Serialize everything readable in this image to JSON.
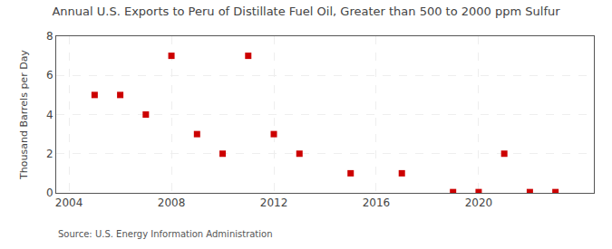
{
  "chart_data": {
    "type": "scatter",
    "title": "Annual U.S. Exports to Peru of Distillate Fuel Oil, Greater than 500 to 2000 ppm Sulfur",
    "ylabel": "Thousand Barrels per Day",
    "annotations": [
      "Source: U.S. Energy Information Administration"
    ],
    "x": [
      2005,
      2006,
      2007,
      2008,
      2009,
      2010,
      2011,
      2012,
      2013,
      2015,
      2017,
      2019,
      2020,
      2021,
      2022,
      2023
    ],
    "values": [
      5,
      5,
      4,
      7,
      3,
      2,
      7,
      3,
      2,
      1,
      1,
      0.04,
      0.04,
      2,
      0.04,
      0.04
    ],
    "color": "#cc0000",
    "marker": "square",
    "xlim": [
      2003.5,
      2024.5
    ],
    "ylim": [
      0,
      8
    ],
    "xticks": [
      2004,
      2008,
      2012,
      2016,
      2020
    ],
    "yticks": [
      0,
      2,
      4,
      6,
      8
    ],
    "grid": true
  }
}
